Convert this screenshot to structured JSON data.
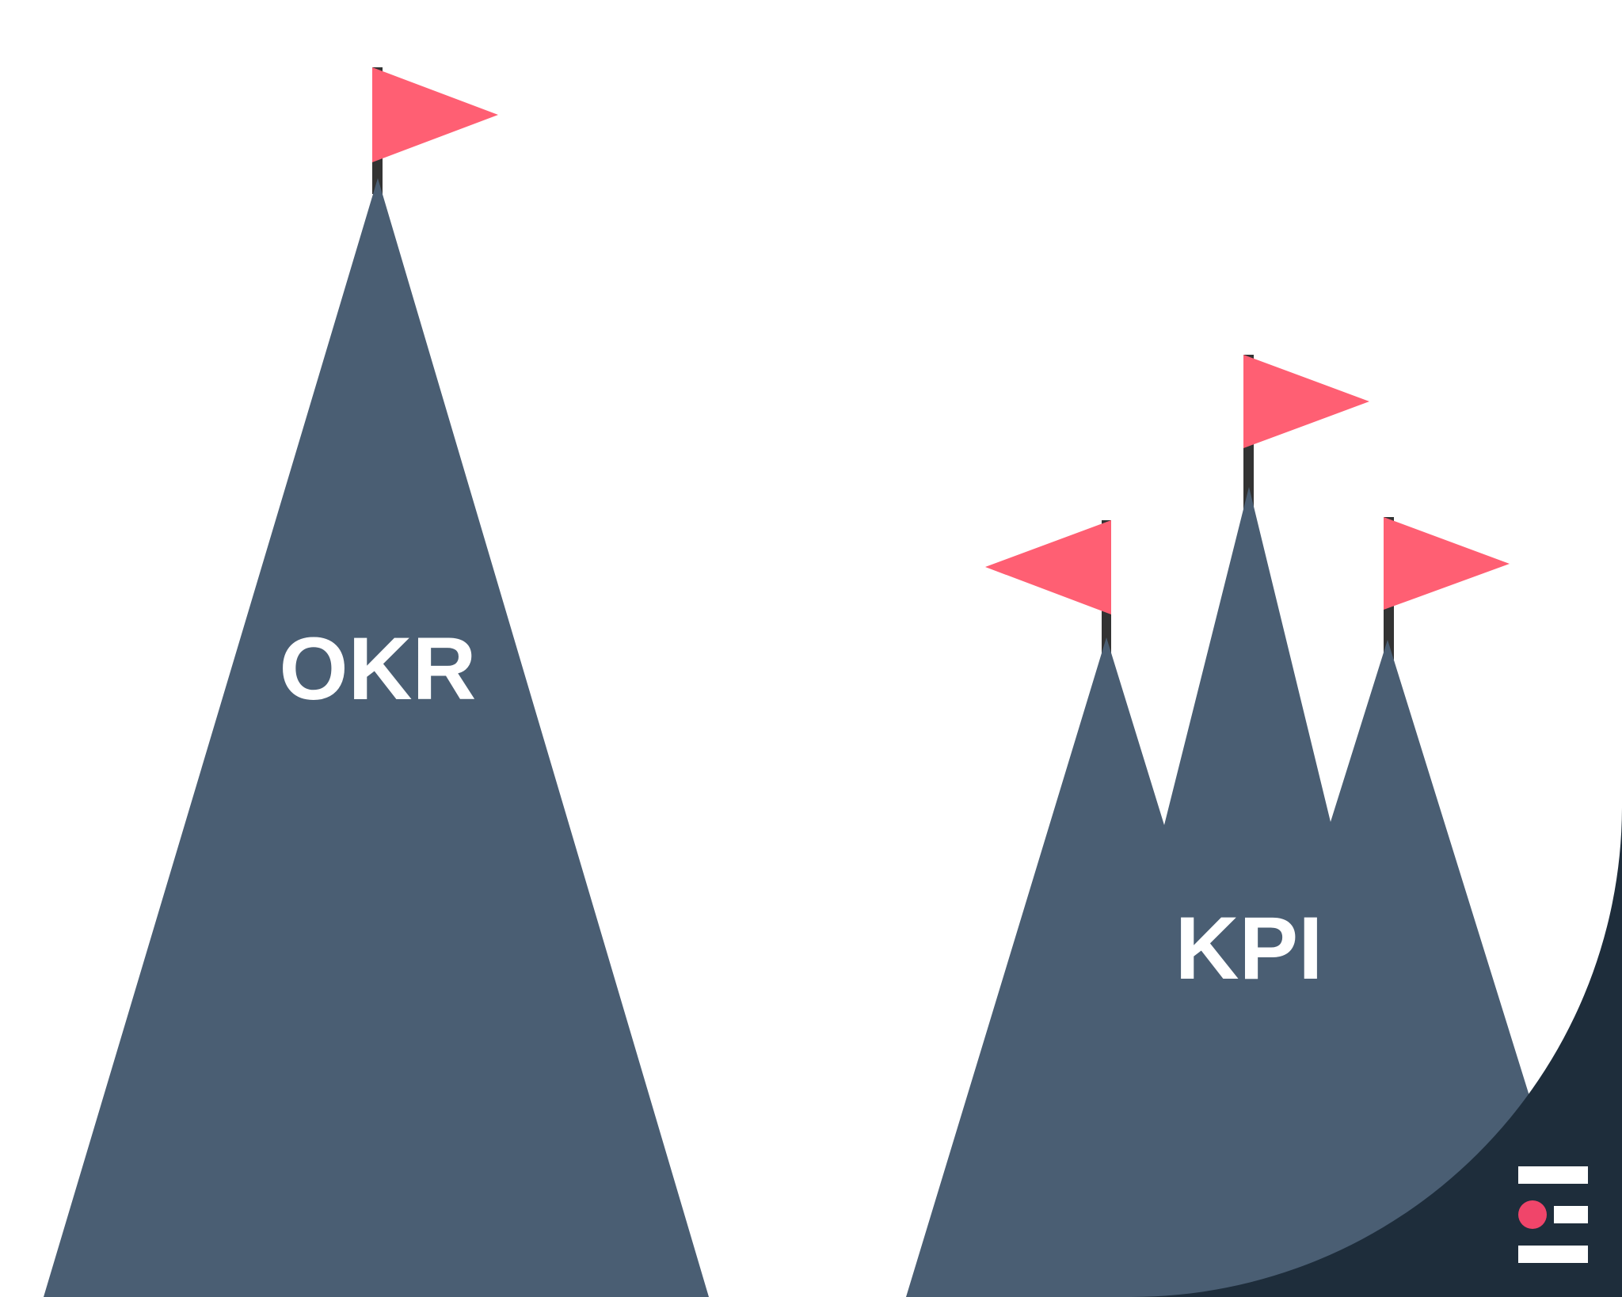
{
  "illustration": {
    "left_mountain": {
      "label": "OKR"
    },
    "right_mountain": {
      "label": "KPI"
    }
  },
  "colors": {
    "background": "#ffffff",
    "mountain": "#4a5e73",
    "flag": "#ff5f73",
    "flag_pole": "#333333",
    "corner_shape": "#1e2d3b",
    "logo_bars": "#ffffff",
    "logo_dot": "#f0456a"
  },
  "icons": [
    "flag-icon",
    "logo-icon"
  ]
}
